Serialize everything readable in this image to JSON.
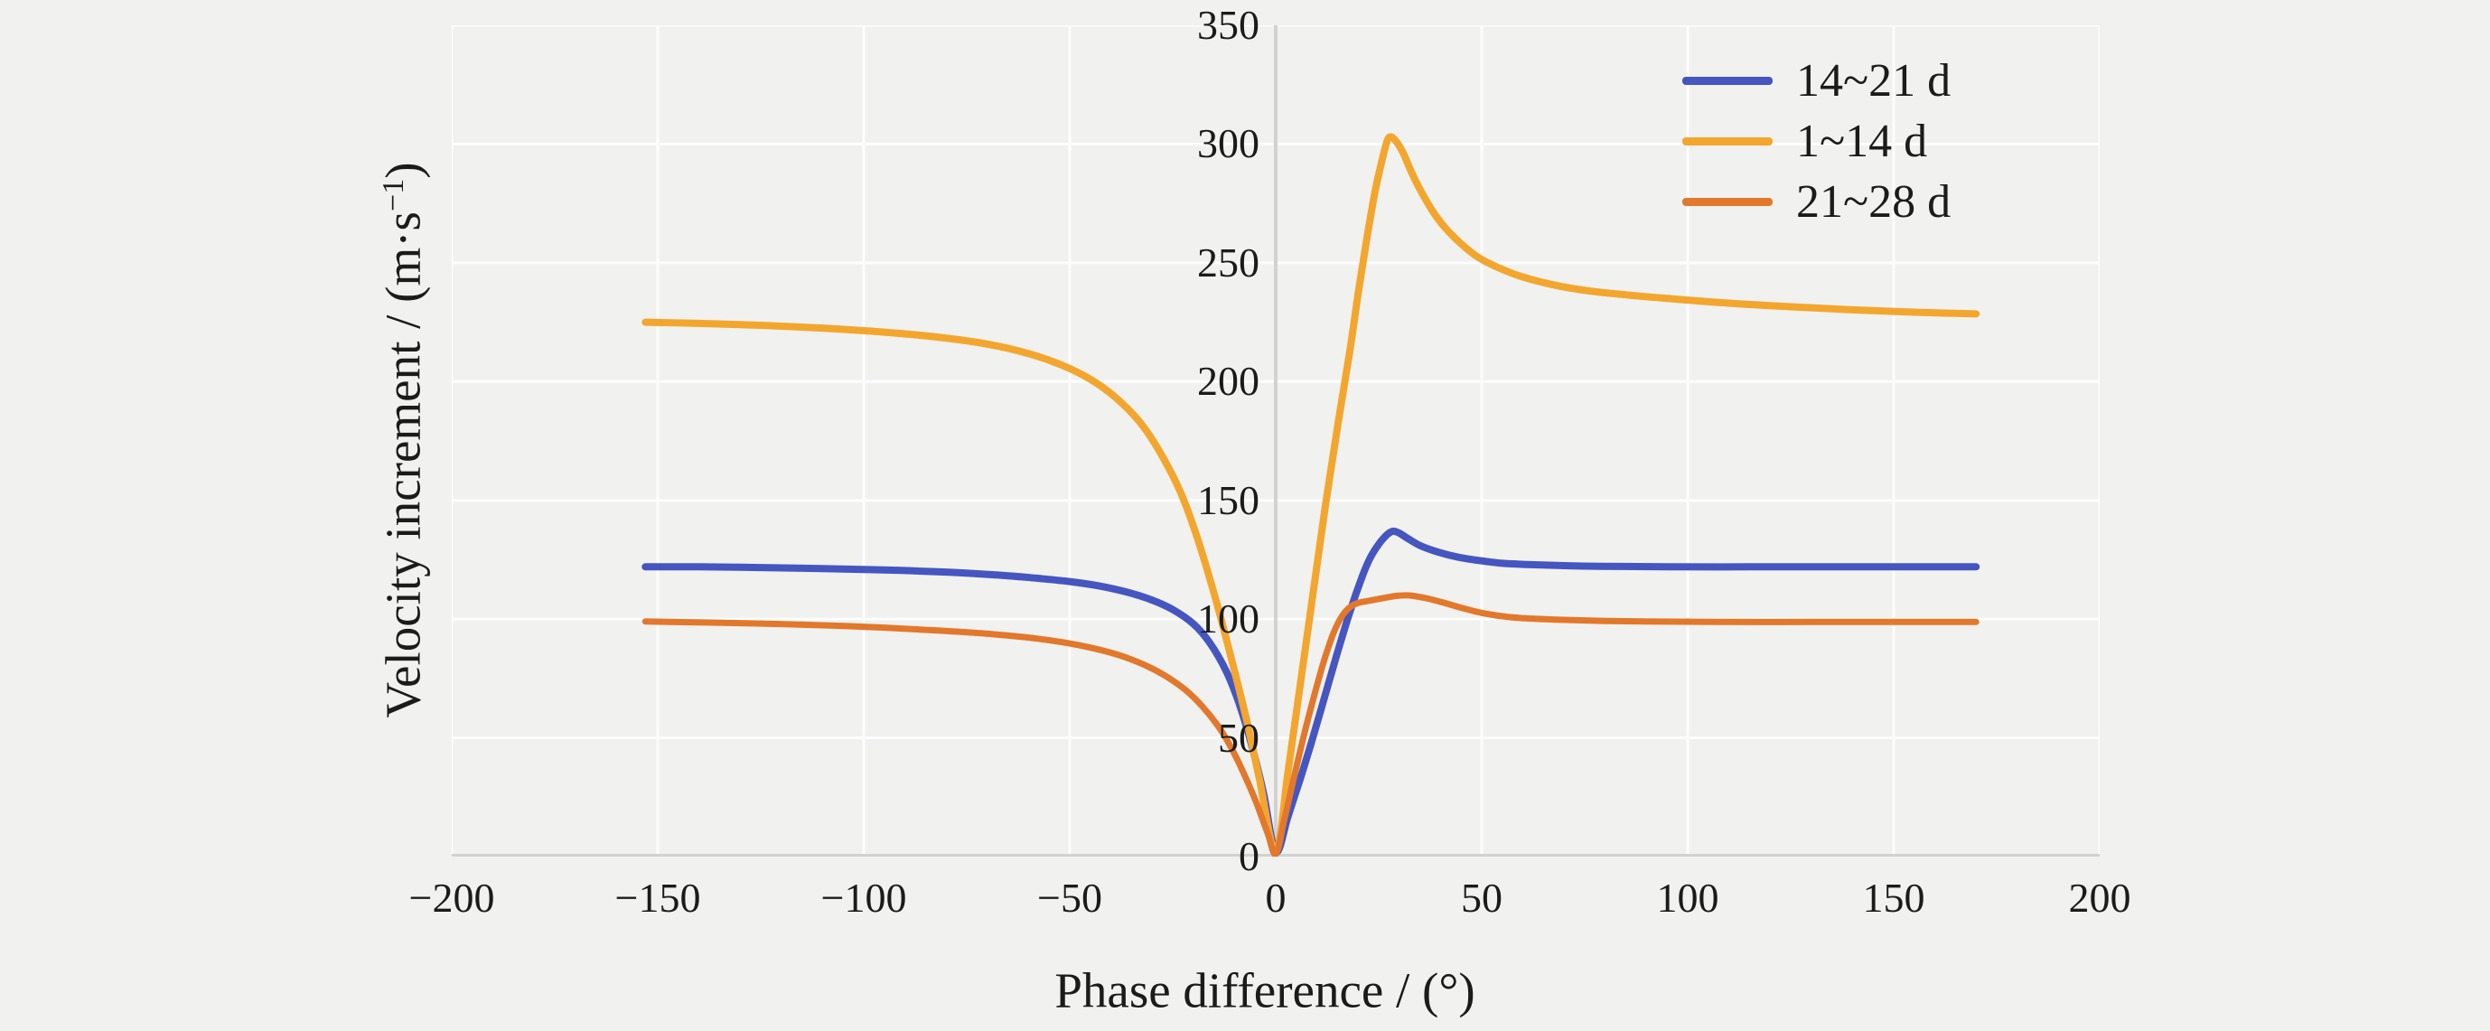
{
  "figure": {
    "background_color": "#f1f1ef",
    "gridline_color": "#fdfdfd",
    "axis_line_color": "#d2d2d0",
    "text_color": "#1b1b19"
  },
  "axes": {
    "x": {
      "title": "Phase difference / (°)",
      "tick_labels": [
        "−200",
        "−150",
        "−100",
        "−50",
        "0",
        "50",
        "100",
        "150",
        "200"
      ]
    },
    "y": {
      "title_prefix": "Velocity increment / (m·s",
      "title_sup": "−1",
      "title_suffix": ")",
      "tick_labels": [
        "0",
        "50",
        "100",
        "150",
        "200",
        "250",
        "300",
        "350"
      ]
    }
  },
  "chart_data": {
    "type": "line",
    "title": "",
    "xlabel": "Phase difference / (°)",
    "ylabel": "Velocity increment / (m·s⁻¹)",
    "xlim": [
      -200,
      200
    ],
    "ylim": [
      0,
      350
    ],
    "x_ticks": [
      -200,
      -150,
      -100,
      -50,
      0,
      50,
      100,
      150,
      200
    ],
    "y_ticks": [
      0,
      50,
      100,
      150,
      200,
      250,
      300,
      350
    ],
    "grid": true,
    "legend_position": "upper right inside plot",
    "series": [
      {
        "name": "14~21 d",
        "color": "#4556c0",
        "line_width": 8,
        "points": [
          [
            -153,
            122
          ],
          [
            -140,
            122
          ],
          [
            -125,
            121.7
          ],
          [
            -110,
            121.3
          ],
          [
            -95,
            120.7
          ],
          [
            -80,
            119.8
          ],
          [
            -68,
            118.6
          ],
          [
            -58,
            117.2
          ],
          [
            -50,
            115.8
          ],
          [
            -43,
            114
          ],
          [
            -36,
            111.3
          ],
          [
            -30,
            108
          ],
          [
            -25,
            104
          ],
          [
            -20,
            98
          ],
          [
            -16,
            90
          ],
          [
            -12,
            78
          ],
          [
            -9,
            65
          ],
          [
            -6,
            48
          ],
          [
            -3,
            27
          ],
          [
            0,
            2
          ],
          [
            3,
            17
          ],
          [
            6,
            33
          ],
          [
            9,
            50
          ],
          [
            12,
            68
          ],
          [
            15,
            86
          ],
          [
            18,
            103
          ],
          [
            21,
            118
          ],
          [
            23,
            126
          ],
          [
            25,
            131.5
          ],
          [
            27,
            135.5
          ],
          [
            28.5,
            137
          ],
          [
            30,
            136.2
          ],
          [
            32,
            134
          ],
          [
            35,
            131
          ],
          [
            38,
            129
          ],
          [
            42,
            127
          ],
          [
            46,
            125.5
          ],
          [
            50,
            124.5
          ],
          [
            55,
            123.5
          ],
          [
            61,
            123
          ],
          [
            70,
            122.5
          ],
          [
            80,
            122.2
          ],
          [
            95,
            122
          ],
          [
            115,
            122
          ],
          [
            135,
            122
          ],
          [
            155,
            122
          ],
          [
            170,
            122
          ]
        ]
      },
      {
        "name": "1~14 d",
        "color": "#f3a62e",
        "line_width": 8,
        "points": [
          [
            -153,
            225
          ],
          [
            -140,
            224.5
          ],
          [
            -125,
            223.7
          ],
          [
            -110,
            222.5
          ],
          [
            -95,
            220.8
          ],
          [
            -82,
            218.7
          ],
          [
            -70,
            215.8
          ],
          [
            -60,
            211.8
          ],
          [
            -52,
            207
          ],
          [
            -45,
            201
          ],
          [
            -39,
            193.5
          ],
          [
            -33,
            183
          ],
          [
            -28,
            170
          ],
          [
            -23,
            153
          ],
          [
            -19,
            134
          ],
          [
            -15,
            111
          ],
          [
            -11,
            85
          ],
          [
            -7,
            57
          ],
          [
            -4,
            33
          ],
          [
            0,
            2
          ],
          [
            3,
            36
          ],
          [
            6,
            73
          ],
          [
            9,
            110
          ],
          [
            12,
            147
          ],
          [
            15,
            181
          ],
          [
            18,
            213
          ],
          [
            20,
            237
          ],
          [
            22,
            259
          ],
          [
            24,
            279
          ],
          [
            25.5,
            291
          ],
          [
            27,
            301
          ],
          [
            28,
            303
          ],
          [
            29.5,
            300.5
          ],
          [
            31,
            296
          ],
          [
            33,
            288
          ],
          [
            35,
            281
          ],
          [
            38,
            272
          ],
          [
            41,
            265
          ],
          [
            45,
            258
          ],
          [
            49,
            252.5
          ],
          [
            54,
            248
          ],
          [
            60,
            244
          ],
          [
            68,
            240.5
          ],
          [
            76,
            238.2
          ],
          [
            85,
            236.5
          ],
          [
            95,
            235
          ],
          [
            110,
            233
          ],
          [
            125,
            231.5
          ],
          [
            140,
            230.2
          ],
          [
            155,
            229.2
          ],
          [
            170,
            228.5
          ]
        ]
      },
      {
        "name": "21~28 d",
        "color": "#e2782c",
        "line_width": 7,
        "points": [
          [
            -153,
            99
          ],
          [
            -140,
            98.6
          ],
          [
            -125,
            98.1
          ],
          [
            -110,
            97.4
          ],
          [
            -95,
            96.4
          ],
          [
            -82,
            95.2
          ],
          [
            -70,
            93.8
          ],
          [
            -60,
            92.2
          ],
          [
            -52,
            90.3
          ],
          [
            -45,
            88
          ],
          [
            -38,
            84.8
          ],
          [
            -32,
            80.8
          ],
          [
            -27,
            76.3
          ],
          [
            -22,
            70.3
          ],
          [
            -18,
            63.6
          ],
          [
            -14,
            55
          ],
          [
            -11,
            46.5
          ],
          [
            -8,
            36
          ],
          [
            -5,
            24
          ],
          [
            -2,
            10
          ],
          [
            0,
            1
          ],
          [
            2,
            15
          ],
          [
            4,
            30
          ],
          [
            6,
            45
          ],
          [
            8,
            59
          ],
          [
            10,
            72
          ],
          [
            12,
            84
          ],
          [
            14,
            94
          ],
          [
            16,
            101
          ],
          [
            18,
            105
          ],
          [
            20,
            106.8
          ],
          [
            23,
            107.8
          ],
          [
            26,
            108.8
          ],
          [
            29,
            109.7
          ],
          [
            32,
            110
          ],
          [
            35,
            109.3
          ],
          [
            38,
            108.2
          ],
          [
            42,
            106.3
          ],
          [
            46,
            104.3
          ],
          [
            50,
            102.6
          ],
          [
            55,
            101.2
          ],
          [
            60,
            100.4
          ],
          [
            68,
            99.8
          ],
          [
            78,
            99.3
          ],
          [
            90,
            99
          ],
          [
            110,
            98.8
          ],
          [
            130,
            98.8
          ],
          [
            150,
            98.8
          ],
          [
            170,
            98.8
          ]
        ]
      }
    ]
  }
}
